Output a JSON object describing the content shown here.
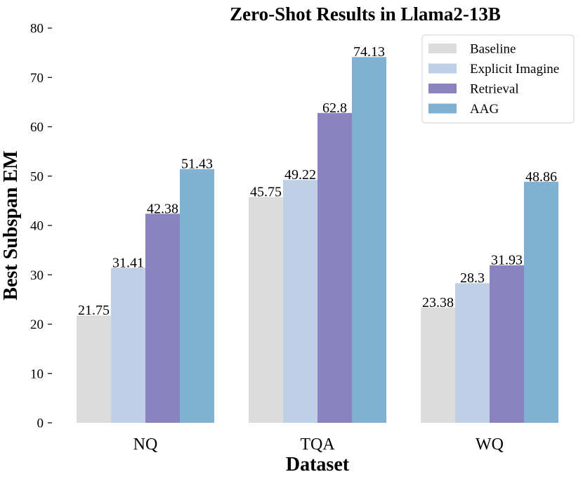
{
  "chart_data": {
    "type": "bar",
    "title": "Zero-Shot Results in Llama2-13B",
    "xlabel": "Dataset",
    "ylabel": "Best Subspan EM",
    "categories": [
      "NQ",
      "TQA",
      "WQ"
    ],
    "ylim": [
      0,
      80
    ],
    "yticks": [
      0,
      10,
      20,
      30,
      40,
      50,
      60,
      70,
      80
    ],
    "grid": false,
    "legend_position": "top-right",
    "series": [
      {
        "name": "Baseline",
        "color": "#dcdcdc",
        "values": [
          21.75,
          45.75,
          23.38
        ],
        "labels": [
          "21.75",
          "45.75",
          "23.38"
        ]
      },
      {
        "name": "Explicit Imagine",
        "color": "#bfd0e6",
        "values": [
          31.41,
          49.22,
          28.3
        ],
        "labels": [
          "31.41",
          "49.22",
          "28.3"
        ]
      },
      {
        "name": "Retrieval",
        "color": "#8a83bf",
        "values": [
          42.38,
          62.8,
          31.93
        ],
        "labels": [
          "42.38",
          "62.8",
          "31.93"
        ]
      },
      {
        "name": "AAG",
        "color": "#80b1d3",
        "values": [
          51.43,
          74.13,
          48.86
        ],
        "labels": [
          "51.43",
          "74.13",
          "48.86"
        ]
      }
    ]
  }
}
